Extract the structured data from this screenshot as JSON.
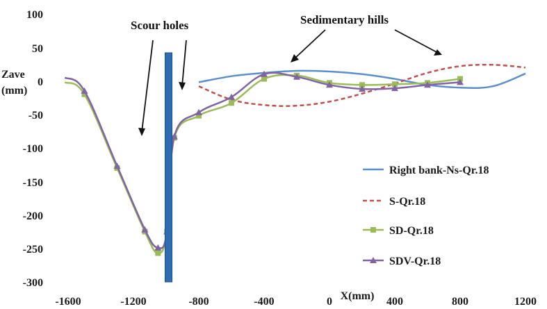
{
  "chart_data": {
    "type": "line",
    "xlim": [
      -1600,
      1200
    ],
    "ylim": [
      -300,
      100
    ],
    "x_ticks": [
      -1600,
      -1200,
      -800,
      -400,
      0,
      400,
      800,
      1200
    ],
    "y_ticks": [
      100,
      50,
      0,
      -50,
      -100,
      -150,
      -200,
      -250,
      -300
    ],
    "x_tick_labels": [
      "-1600",
      "-1200",
      "-800",
      "-400",
      "0",
      "400",
      "800",
      "1200"
    ],
    "y_tick_labels": [
      "100",
      "50",
      "0",
      "-50",
      "-100",
      "-150",
      "-200",
      "-250",
      "-300"
    ],
    "xlabel": "X(mm)",
    "ylabel_line1": "Zave",
    "ylabel_line2": "(mm)",
    "grid": false,
    "legend_position": "bottom-right",
    "series": [
      {
        "name": "Right bank-Ns-Qr.18",
        "color": "#5b8fcb",
        "style": "solid",
        "marker": "none",
        "x": [
          -800,
          -600,
          -400,
          -200,
          0,
          200,
          400,
          600,
          800,
          1000,
          1200
        ],
        "y": [
          -2,
          7,
          12,
          15,
          14,
          10,
          3,
          -6,
          -10,
          -8,
          11
        ]
      },
      {
        "name": "S-Qr.18",
        "color": "#c0504d",
        "style": "dashed",
        "marker": "none",
        "x": [
          -800,
          -600,
          -400,
          -200,
          0,
          200,
          400,
          600,
          800,
          1000,
          1200
        ],
        "y": [
          -8,
          -28,
          -36,
          -37,
          -31,
          -19,
          -4,
          12,
          22,
          24,
          20
        ]
      },
      {
        "name": "SD-Qr.18",
        "color": "#9bbb59",
        "style": "solid",
        "marker": "square",
        "x": [
          -1620,
          -1500,
          -1300,
          -1130,
          -1050,
          -995,
          -950,
          -800,
          -600,
          -400,
          -200,
          0,
          200,
          400,
          600,
          800
        ],
        "y": [
          -2,
          -20,
          -130,
          -225,
          -257,
          -225,
          -85,
          -52,
          -33,
          3,
          8,
          -3,
          -6,
          -5,
          -3,
          3
        ]
      },
      {
        "name": "SDV-Qr.18",
        "color": "#8064a2",
        "style": "solid",
        "marker": "triangle",
        "x": [
          -1620,
          -1500,
          -1300,
          -1130,
          -1050,
          -995,
          -950,
          -800,
          -600,
          -400,
          -200,
          0,
          200,
          400,
          600,
          800
        ],
        "y": [
          5,
          -15,
          -127,
          -222,
          -249,
          -225,
          -83,
          -47,
          -24,
          10,
          6,
          -6,
          -12,
          -11,
          -6,
          -2
        ]
      }
    ],
    "pier": {
      "x": -985,
      "y_top": 42,
      "y_bottom": -300,
      "color": "#2e6db4"
    },
    "annotations": [
      {
        "text": "Scour holes"
      },
      {
        "text": "Sedimentary hills"
      }
    ]
  }
}
